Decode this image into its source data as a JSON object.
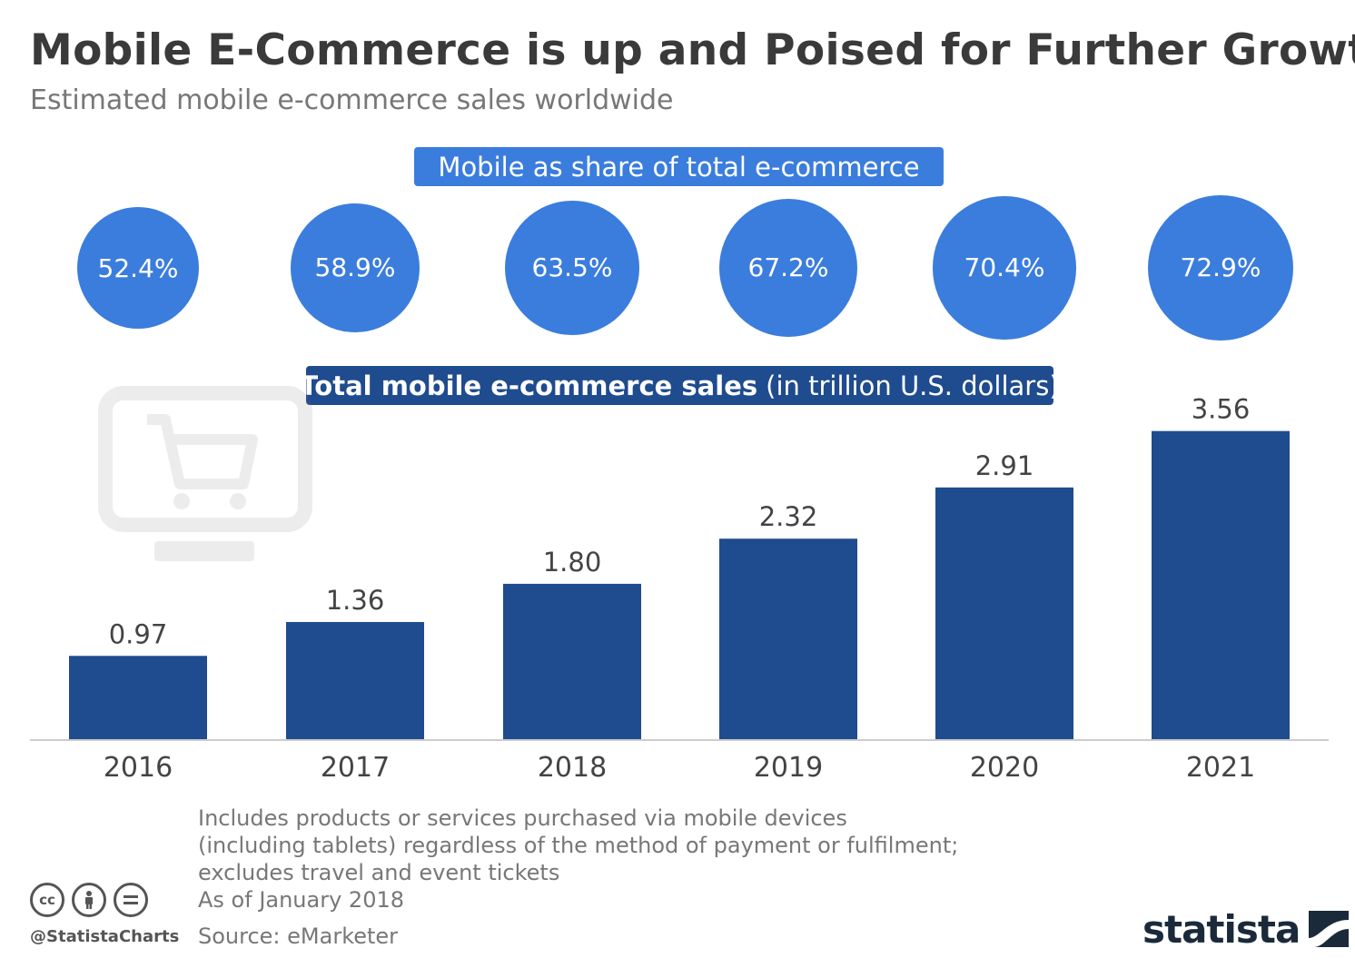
{
  "title": "Mobile E-Commerce is up and Poised for Further Growth",
  "subtitle": "Estimated mobile e-commerce sales worldwide",
  "share_heading": "Mobile as share of total e-commerce",
  "sales_heading_bold": "Total mobile e-commerce sales",
  "sales_heading_unit": "(in trillion U.S. dollars)",
  "share_labels": [
    "52.4%",
    "58.9%",
    "63.5%",
    "67.2%",
    "70.4%",
    "72.9%"
  ],
  "notes": [
    "Includes products or services purchased via mobile devices",
    "(including tablets) regardless of the method of payment or fulfilment;",
    "excludes travel and event tickets",
    "As of January 2018",
    "Source: eMarketer"
  ],
  "footer": {
    "handle": "@StatistaCharts",
    "brand": "statista",
    "license_icons": [
      "cc-icon",
      "attribution-icon",
      "noderivs-icon"
    ]
  },
  "colors": {
    "bar": "#1f4b8f",
    "circle": "#3b7ddd",
    "axis": "#cccccc",
    "label": "#444444"
  },
  "decoration_icon": "shopping-cart-monitor-icon",
  "chart_data": [
    {
      "type": "bar",
      "title": "Total mobile e-commerce sales",
      "ylabel": "(in trillion U.S. dollars)",
      "categories": [
        "2016",
        "2017",
        "2018",
        "2019",
        "2020",
        "2021"
      ],
      "values": [
        0.97,
        1.36,
        1.8,
        2.32,
        2.91,
        3.56
      ],
      "value_labels": [
        "0.97",
        "1.36",
        "1.80",
        "2.32",
        "2.91",
        "3.56"
      ],
      "ylim": [
        0,
        3.8
      ],
      "grid": false,
      "legend": "none"
    },
    {
      "type": "bubble",
      "title": "Mobile as share of total e-commerce",
      "categories": [
        "2016",
        "2017",
        "2018",
        "2019",
        "2020",
        "2021"
      ],
      "values": [
        52.4,
        58.9,
        63.5,
        67.2,
        70.4,
        72.9
      ],
      "unit": "%"
    }
  ]
}
